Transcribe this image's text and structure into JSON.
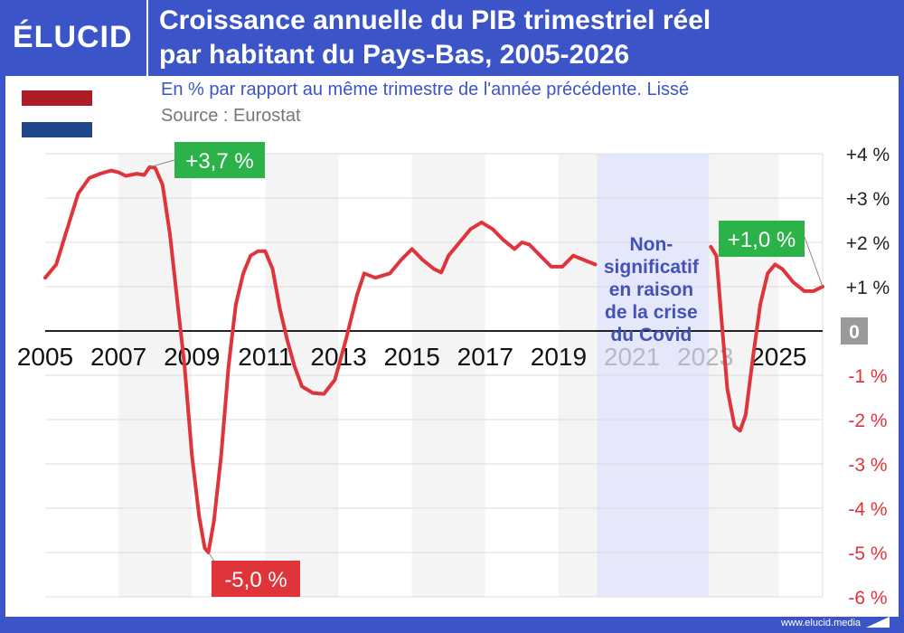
{
  "header": {
    "logo": "ÉLUCID",
    "title_line1": "Croissance annuelle du PIB trimestriel réel",
    "title_line2": "par habitant du Pays-Bas, 2005-2026"
  },
  "subtitle": "En % par rapport au même trimestre de l'année précédente. Lissé",
  "source": "Source : Eurostat",
  "footer": "www.elucid.media",
  "colors": {
    "brand": "#3b55c8",
    "line": "#e0343b",
    "positive_label": "#2bb34a",
    "negative_label": "#e0343b",
    "covid_band": "#e5e8fa",
    "flag_red": "#ae1c28",
    "flag_white": "#ffffff",
    "flag_blue": "#21468b"
  },
  "chart_data": {
    "type": "line",
    "title": "Croissance annuelle du PIB trimestriel réel par habitant du Pays-Bas, 2005-2026",
    "xlabel": "",
    "ylabel": "",
    "xlim": [
      2005,
      2026.2
    ],
    "ylim": [
      -6,
      4
    ],
    "x_ticks": [
      "2005",
      "2007",
      "2009",
      "2011",
      "2013",
      "2015",
      "2017",
      "2019",
      "2021",
      "2023",
      "2025"
    ],
    "x_tick_values": [
      2005,
      2007,
      2009,
      2011,
      2013,
      2015,
      2017,
      2019,
      2021,
      2023,
      2025
    ],
    "y_ticks": [
      "+4 %",
      "+3 %",
      "+2 %",
      "+1 %",
      "0",
      "-1 %",
      "-2 %",
      "-3 %",
      "-4 %",
      "-5 %",
      "-6 %"
    ],
    "y_tick_values": [
      4,
      3,
      2,
      1,
      0,
      -1,
      -2,
      -3,
      -4,
      -5,
      -6
    ],
    "grid": true,
    "series": [
      {
        "segments": [
          [
            [
              2005.0,
              1.2
            ],
            [
              2005.3,
              1.5
            ],
            [
              2005.6,
              2.3
            ],
            [
              2005.9,
              3.1
            ],
            [
              2006.2,
              3.45
            ],
            [
              2006.5,
              3.55
            ],
            [
              2006.8,
              3.62
            ],
            [
              2007.0,
              3.58
            ],
            [
              2007.2,
              3.5
            ],
            [
              2007.5,
              3.55
            ],
            [
              2007.7,
              3.52
            ],
            [
              2007.85,
              3.7
            ],
            [
              2008.0,
              3.68
            ],
            [
              2008.2,
              3.3
            ],
            [
              2008.4,
              2.2
            ],
            [
              2008.6,
              0.7
            ],
            [
              2008.8,
              -0.8
            ],
            [
              2009.0,
              -2.8
            ],
            [
              2009.2,
              -4.2
            ],
            [
              2009.35,
              -4.9
            ],
            [
              2009.45,
              -5.0
            ],
            [
              2009.6,
              -4.3
            ],
            [
              2009.8,
              -2.8
            ],
            [
              2010.0,
              -0.8
            ],
            [
              2010.2,
              0.6
            ],
            [
              2010.4,
              1.3
            ],
            [
              2010.6,
              1.7
            ],
            [
              2010.8,
              1.8
            ],
            [
              2011.0,
              1.8
            ],
            [
              2011.2,
              1.4
            ],
            [
              2011.4,
              0.5
            ],
            [
              2011.6,
              -0.2
            ],
            [
              2011.8,
              -0.8
            ],
            [
              2012.0,
              -1.25
            ],
            [
              2012.3,
              -1.4
            ],
            [
              2012.6,
              -1.42
            ],
            [
              2012.9,
              -1.1
            ],
            [
              2013.2,
              -0.2
            ],
            [
              2013.5,
              0.8
            ],
            [
              2013.7,
              1.3
            ],
            [
              2014.0,
              1.2
            ],
            [
              2014.4,
              1.3
            ],
            [
              2014.7,
              1.6
            ],
            [
              2015.0,
              1.85
            ],
            [
              2015.3,
              1.6
            ],
            [
              2015.6,
              1.4
            ],
            [
              2015.8,
              1.32
            ],
            [
              2016.0,
              1.7
            ],
            [
              2016.3,
              2.0
            ],
            [
              2016.6,
              2.3
            ],
            [
              2016.9,
              2.45
            ],
            [
              2017.2,
              2.3
            ],
            [
              2017.5,
              2.05
            ],
            [
              2017.8,
              1.85
            ],
            [
              2018.0,
              2.0
            ],
            [
              2018.2,
              1.95
            ],
            [
              2018.5,
              1.7
            ],
            [
              2018.8,
              1.45
            ],
            [
              2019.1,
              1.45
            ],
            [
              2019.4,
              1.7
            ],
            [
              2019.7,
              1.6
            ],
            [
              2020.0,
              1.5
            ]
          ],
          [
            [
              2023.15,
              1.9
            ],
            [
              2023.3,
              1.7
            ],
            [
              2023.45,
              0.2
            ],
            [
              2023.6,
              -1.3
            ],
            [
              2023.8,
              -2.15
            ],
            [
              2023.95,
              -2.25
            ],
            [
              2024.1,
              -1.9
            ],
            [
              2024.3,
              -0.6
            ],
            [
              2024.5,
              0.6
            ],
            [
              2024.7,
              1.3
            ],
            [
              2024.9,
              1.5
            ],
            [
              2025.1,
              1.4
            ],
            [
              2025.4,
              1.1
            ],
            [
              2025.7,
              0.9
            ],
            [
              2025.95,
              0.9
            ],
            [
              2026.2,
              1.0
            ]
          ]
        ]
      }
    ],
    "covid_band": {
      "from": 2020.05,
      "to": 2023.1
    },
    "annotations": [
      {
        "text": "+3,7 %",
        "x": 2007.85,
        "y": 3.7,
        "kind": "positive"
      },
      {
        "text": "-5,0 %",
        "x": 2009.45,
        "y": -5.0,
        "kind": "negative"
      },
      {
        "text": "+1,0 %",
        "x": 2026.2,
        "y": 1.0,
        "kind": "positive"
      }
    ],
    "covid_note": [
      "Non-",
      "significatif",
      "en raison",
      "de la crise",
      "du Covid"
    ]
  }
}
